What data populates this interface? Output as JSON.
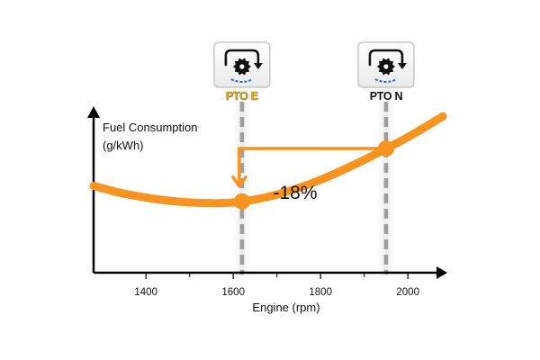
{
  "chart_data": {
    "type": "line",
    "ylabel_line1": "Fuel Consumption",
    "ylabel_line2": "(g/kWh)",
    "xlabel": "Engine (rpm)",
    "xlim": [
      1280,
      2080
    ],
    "xticks": [
      1400,
      1600,
      1800,
      2000
    ],
    "minor_ticks": [
      1500,
      1700,
      1900
    ],
    "series": [
      {
        "x": [
          1280,
          1350,
          1450,
          1550,
          1620,
          1700,
          1800,
          1900,
          1950,
          2000,
          2080
        ],
        "y": [
          100,
          91,
          83,
          80,
          82,
          90,
          107,
          130,
          143,
          156,
          180
        ]
      }
    ],
    "markers": [
      {
        "label": "PTO E",
        "x": 1620,
        "y": 82
      },
      {
        "label": "PTO N",
        "x": 1950,
        "y": 143
      }
    ],
    "annotation": {
      "text": "-18%"
    },
    "colors": {
      "curve": "#F7931E",
      "marker_line": "#9E9E9E",
      "axis": "#000000",
      "pto_e_text": "#E8A81E",
      "pto_n_text": "#111111"
    },
    "icons": [
      "pto-engine-icon",
      "pto-engine-icon"
    ]
  }
}
